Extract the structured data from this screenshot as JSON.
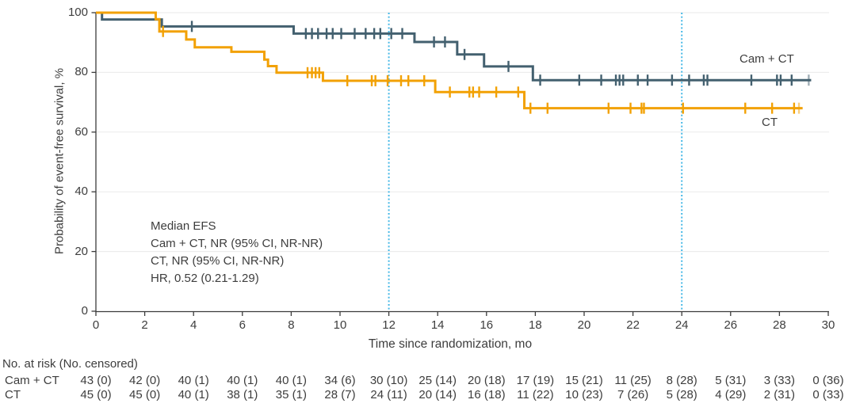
{
  "figure": {
    "background": "#ffffff",
    "text_color": "#3d3d3d"
  },
  "chart_data": {
    "type": "line",
    "subtype": "kaplan-meier-step-curve",
    "title": "",
    "xlabel": "Time since randomization, mo",
    "ylabel": "Probability of event-free survival, %",
    "xlim": [
      0,
      30
    ],
    "ylim": [
      0,
      100
    ],
    "x_ticks": [
      0,
      2,
      4,
      6,
      8,
      10,
      12,
      14,
      16,
      18,
      20,
      22,
      24,
      26,
      28,
      30
    ],
    "y_ticks": [
      0,
      20,
      40,
      60,
      80,
      100
    ],
    "grid": "horizontal",
    "grid_color": "#eaeaea",
    "axis_color": "#3b3b3b",
    "reference_lines": {
      "x_values": [
        12,
        24
      ],
      "style": "dotted",
      "color": "#45b8e6"
    },
    "legend_position": "inline-curve-labels",
    "series": [
      {
        "name": "Cam + CT",
        "color": "#43606f",
        "steps": [
          [
            0,
            100
          ],
          [
            0.25,
            97.7
          ],
          [
            2.7,
            95.4
          ],
          [
            8.1,
            93.0
          ],
          [
            13.05,
            90.2
          ],
          [
            14.8,
            86.0
          ],
          [
            15.9,
            82.0
          ],
          [
            17.9,
            77.4
          ]
        ],
        "end_time": 29.3,
        "censor_marks": [
          [
            3.93,
            95.4
          ],
          [
            8.6,
            93.0
          ],
          [
            8.85,
            93.0
          ],
          [
            9.1,
            93.0
          ],
          [
            9.45,
            93.0
          ],
          [
            9.7,
            93.0
          ],
          [
            10.05,
            93.0
          ],
          [
            10.6,
            93.0
          ],
          [
            11.05,
            93.0
          ],
          [
            11.4,
            93.0
          ],
          [
            11.65,
            93.0
          ],
          [
            12.1,
            93.0
          ],
          [
            12.55,
            93.0
          ],
          [
            13.85,
            90.2
          ],
          [
            14.3,
            90.2
          ],
          [
            15.1,
            86.0
          ],
          [
            16.9,
            82.0
          ],
          [
            18.2,
            77.4
          ],
          [
            19.8,
            77.4
          ],
          [
            20.7,
            77.4
          ],
          [
            21.3,
            77.4
          ],
          [
            21.45,
            77.4
          ],
          [
            21.6,
            77.4
          ],
          [
            22.2,
            77.4
          ],
          [
            22.6,
            77.4
          ],
          [
            23.6,
            77.4
          ],
          [
            24.3,
            77.4
          ],
          [
            24.9,
            77.4
          ],
          [
            25.05,
            77.4
          ],
          [
            26.85,
            77.4
          ],
          [
            27.9,
            77.4
          ],
          [
            28.05,
            77.4
          ],
          [
            28.5,
            77.4
          ],
          [
            29.2,
            77.4
          ]
        ]
      },
      {
        "name": "CT",
        "color": "#f2a104",
        "steps": [
          [
            0,
            100
          ],
          [
            2.45,
            97.8
          ],
          [
            2.6,
            93.7
          ],
          [
            3.7,
            91.0
          ],
          [
            4.05,
            88.4
          ],
          [
            5.55,
            86.9
          ],
          [
            6.9,
            84.3
          ],
          [
            7.05,
            82.1
          ],
          [
            7.4,
            79.9
          ],
          [
            9.3,
            77.2
          ],
          [
            13.9,
            73.4
          ],
          [
            17.55,
            68.0
          ]
        ],
        "end_time": 28.95,
        "censor_marks": [
          [
            2.75,
            93.7
          ],
          [
            8.67,
            79.9
          ],
          [
            8.85,
            79.9
          ],
          [
            9.0,
            79.9
          ],
          [
            9.15,
            79.9
          ],
          [
            10.3,
            77.2
          ],
          [
            11.3,
            77.2
          ],
          [
            11.45,
            77.2
          ],
          [
            11.95,
            77.2
          ],
          [
            12.5,
            77.2
          ],
          [
            12.8,
            77.2
          ],
          [
            13.45,
            77.2
          ],
          [
            14.5,
            73.4
          ],
          [
            15.3,
            73.4
          ],
          [
            15.45,
            73.4
          ],
          [
            15.7,
            73.4
          ],
          [
            16.4,
            73.4
          ],
          [
            17.3,
            73.4
          ],
          [
            17.8,
            68.0
          ],
          [
            18.5,
            68.0
          ],
          [
            21.0,
            68.0
          ],
          [
            21.9,
            68.0
          ],
          [
            22.35,
            68.0
          ],
          [
            22.45,
            68.0
          ],
          [
            24.05,
            68.0
          ],
          [
            26.6,
            68.0
          ],
          [
            27.7,
            68.0
          ],
          [
            28.6,
            68.0
          ],
          [
            28.8,
            68.0
          ]
        ]
      }
    ]
  },
  "annotation": {
    "lines": [
      "Median EFS",
      "Cam + CT, NR (95% CI, NR-NR)",
      "CT, NR (95% CI, NR-NR)",
      "HR, 0.52 (0.21-1.29)"
    ]
  },
  "risk_table": {
    "header": "No. at risk (No. censored)",
    "times": [
      0,
      2,
      4,
      6,
      8,
      10,
      12,
      14,
      16,
      18,
      20,
      22,
      24,
      26,
      28,
      30
    ],
    "rows": [
      {
        "label": "Cam + CT",
        "values": [
          "43 (0)",
          "42 (0)",
          "40 (1)",
          "40 (1)",
          "40 (1)",
          "34 (6)",
          "30 (10)",
          "25 (14)",
          "20 (18)",
          "17 (19)",
          "15 (21)",
          "11 (25)",
          "8 (28)",
          "5 (31)",
          "3 (33)",
          "0 (36)"
        ]
      },
      {
        "label": "CT",
        "values": [
          "45 (0)",
          "45 (0)",
          "40 (1)",
          "38 (1)",
          "35 (1)",
          "28 (7)",
          "24 (11)",
          "20 (14)",
          "16 (18)",
          "11 (22)",
          "10 (23)",
          "7 (26)",
          "5 (28)",
          "4 (29)",
          "2 (31)",
          "0 (33)"
        ]
      }
    ]
  }
}
